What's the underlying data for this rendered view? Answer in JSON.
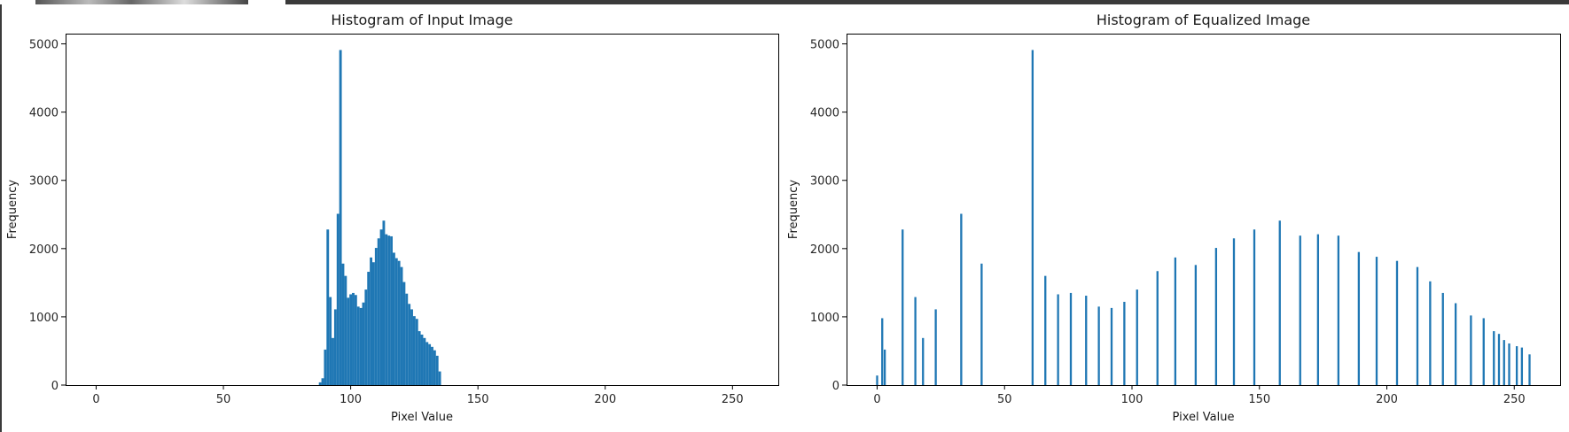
{
  "chart_data": [
    {
      "type": "bar",
      "title": "Histogram of Input Image",
      "xlabel": "Pixel Value",
      "ylabel": "Frequency",
      "xlim": [
        -12,
        268
      ],
      "ylim": [
        0,
        5150
      ],
      "xticks": [
        0,
        50,
        100,
        150,
        200,
        250
      ],
      "yticks": [
        0,
        1000,
        2000,
        3000,
        4000,
        5000
      ],
      "bar_width": 1,
      "x": [
        88,
        89,
        90,
        91,
        92,
        93,
        94,
        95,
        96,
        97,
        98,
        99,
        100,
        101,
        102,
        103,
        104,
        105,
        106,
        107,
        108,
        109,
        110,
        111,
        112,
        113,
        114,
        115,
        116,
        117,
        118,
        119,
        120,
        121,
        122,
        123,
        124,
        125,
        126,
        127,
        128,
        129,
        130,
        131,
        132,
        133,
        134,
        135
      ],
      "values": [
        40,
        100,
        520,
        2280,
        1290,
        690,
        1110,
        2510,
        4910,
        1780,
        1600,
        1280,
        1330,
        1350,
        1320,
        1150,
        1130,
        1210,
        1400,
        1660,
        1870,
        1800,
        2010,
        2150,
        2280,
        2410,
        2210,
        2190,
        2180,
        1940,
        1860,
        1820,
        1730,
        1510,
        1340,
        1190,
        1110,
        1010,
        970,
        790,
        740,
        690,
        630,
        600,
        560,
        510,
        430,
        200
      ]
    },
    {
      "type": "bar",
      "title": "Histogram of Equalized Image",
      "xlabel": "Pixel Value",
      "ylabel": "Frequency",
      "xlim": [
        -12,
        268
      ],
      "ylim": [
        0,
        5150
      ],
      "xticks": [
        0,
        50,
        100,
        150,
        200,
        250
      ],
      "yticks": [
        0,
        1000,
        2000,
        3000,
        4000,
        5000
      ],
      "bar_width": 0.8,
      "x": [
        0,
        2,
        3,
        10,
        15,
        18,
        23,
        33,
        41,
        61,
        66,
        71,
        76,
        82,
        87,
        92,
        97,
        102,
        110,
        117,
        125,
        133,
        140,
        148,
        158,
        166,
        173,
        181,
        189,
        196,
        204,
        212,
        217,
        222,
        227,
        233,
        238,
        242,
        244,
        246,
        248,
        251,
        253,
        256
      ],
      "values": [
        140,
        980,
        520,
        2280,
        1290,
        690,
        1110,
        2510,
        1780,
        4910,
        1600,
        1330,
        1350,
        1310,
        1150,
        1130,
        1220,
        1400,
        1670,
        1870,
        1760,
        2010,
        2150,
        2280,
        2410,
        2190,
        2210,
        2190,
        1950,
        1880,
        1820,
        1730,
        1520,
        1350,
        1200,
        1020,
        980,
        790,
        750,
        660,
        610,
        570,
        550,
        450
      ]
    }
  ]
}
